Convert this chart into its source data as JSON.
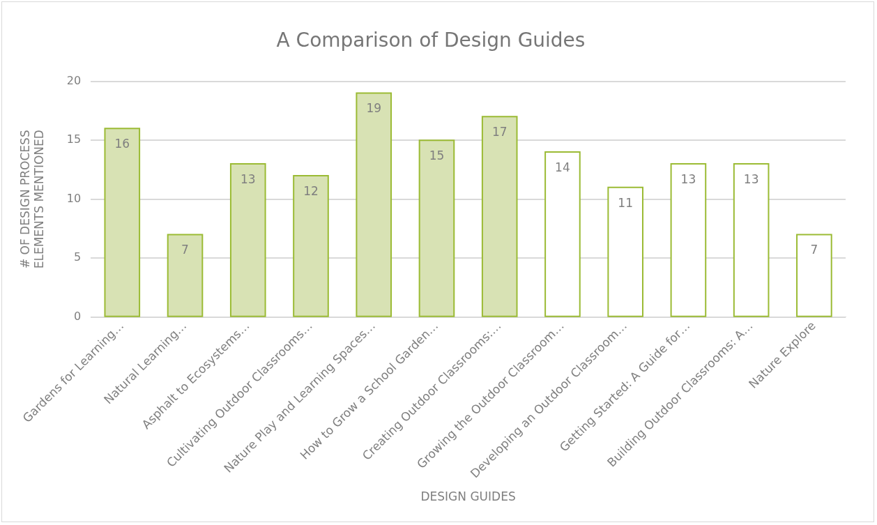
{
  "chart_data": {
    "type": "bar",
    "title": "A Comparison of Design Guides",
    "xlabel": "DESIGN GUIDES",
    "ylabel": "# OF DESIGN PROCESS\nELEMENTS MENTIONED",
    "categories": [
      "Gardens for Learning…",
      "Natural Learning…",
      "Asphalt to Ecosystems…",
      "Cultivating Outdoor Classrooms…",
      "Nature Play and Learning Spaces…",
      "How to Grow a School Garden…",
      "Creating Outdoor Classrooms:…",
      "Growing the Outdoor Classroom…",
      "Developing an Outdoor Classroom…",
      "Getting Started: A Guide for…",
      "Building Outdoor Classrooms: A…",
      "Nature Explore"
    ],
    "values": [
      16,
      7,
      13,
      12,
      19,
      15,
      17,
      14,
      11,
      13,
      13,
      7
    ],
    "color": "#9bbb34",
    "colors": [
      "#d8e2b4",
      "#d8e2b4",
      "#d8e2b4",
      "#d8e2b4",
      "#d8e2b4",
      "#d8e2b4",
      "#d8e2b4",
      "#ffffff",
      "#ffffff",
      "#ffffff",
      "#ffffff",
      "#ffffff"
    ],
    "ylim": [
      0,
      20
    ],
    "yticks": [
      0,
      5,
      10,
      15,
      20
    ],
    "grid": "y",
    "legend": false,
    "data_labels": true
  }
}
